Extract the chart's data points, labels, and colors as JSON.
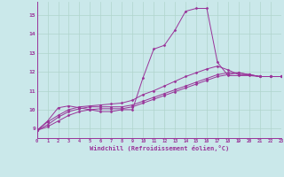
{
  "xlabel": "Windchill (Refroidissement éolien,°C)",
  "xlim": [
    0,
    23
  ],
  "ylim": [
    8.5,
    15.7
  ],
  "yticks": [
    9,
    10,
    11,
    12,
    13,
    14,
    15
  ],
  "xticks": [
    0,
    1,
    2,
    3,
    4,
    5,
    6,
    7,
    8,
    9,
    10,
    11,
    12,
    13,
    14,
    15,
    16,
    17,
    18,
    19,
    20,
    21,
    22,
    23
  ],
  "background_color": "#cae8ea",
  "line_color": "#993399",
  "grid_color": "#b0d4cc",
  "line1_x": [
    0,
    1,
    2,
    3,
    4,
    5,
    6,
    7,
    8,
    9,
    10,
    11,
    12,
    13,
    14,
    15,
    16,
    17,
    18,
    19,
    20,
    21,
    22,
    23
  ],
  "line1_y": [
    8.9,
    9.4,
    10.1,
    10.2,
    10.1,
    10.0,
    9.9,
    9.9,
    10.0,
    10.0,
    11.7,
    13.2,
    13.4,
    14.2,
    15.2,
    15.35,
    15.35,
    12.5,
    11.8,
    11.8,
    11.8,
    11.75,
    11.75,
    11.75
  ],
  "line2_x": [
    0,
    1,
    2,
    3,
    4,
    5,
    6,
    7,
    8,
    9,
    10,
    11,
    12,
    13,
    14,
    15,
    16,
    17,
    18,
    19,
    20,
    21,
    22,
    23
  ],
  "line2_y": [
    8.9,
    9.35,
    9.7,
    10.0,
    10.15,
    10.2,
    10.25,
    10.3,
    10.35,
    10.5,
    10.8,
    11.0,
    11.25,
    11.5,
    11.75,
    11.95,
    12.15,
    12.3,
    12.1,
    11.85,
    11.85,
    11.75,
    11.75,
    11.75
  ],
  "line3_x": [
    0,
    1,
    2,
    3,
    4,
    5,
    6,
    7,
    8,
    9,
    10,
    11,
    12,
    13,
    14,
    15,
    16,
    17,
    18,
    19,
    20,
    21,
    22,
    23
  ],
  "line3_y": [
    8.9,
    9.2,
    9.6,
    9.9,
    10.05,
    10.15,
    10.15,
    10.15,
    10.15,
    10.25,
    10.45,
    10.65,
    10.85,
    11.05,
    11.25,
    11.45,
    11.65,
    11.85,
    11.95,
    11.95,
    11.85,
    11.75,
    11.75,
    11.75
  ],
  "line4_x": [
    0,
    1,
    2,
    3,
    4,
    5,
    6,
    7,
    8,
    9,
    10,
    11,
    12,
    13,
    14,
    15,
    16,
    17,
    18,
    19,
    20,
    21,
    22,
    23
  ],
  "line4_y": [
    8.9,
    9.1,
    9.4,
    9.7,
    9.9,
    10.0,
    10.05,
    10.05,
    10.05,
    10.15,
    10.35,
    10.55,
    10.75,
    10.95,
    11.15,
    11.35,
    11.55,
    11.75,
    11.85,
    11.95,
    11.85,
    11.75,
    11.75,
    11.75
  ]
}
